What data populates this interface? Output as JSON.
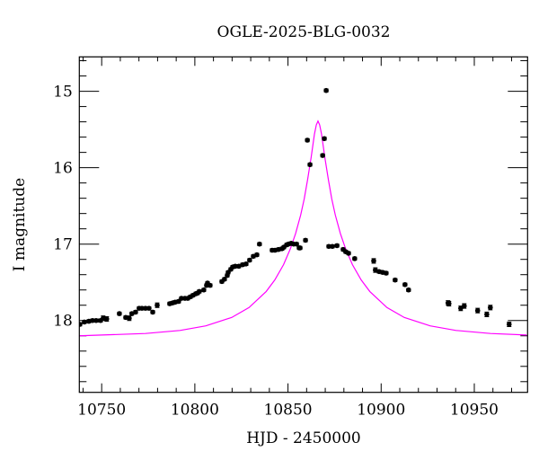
{
  "chart_data": {
    "type": "scatter",
    "title": "OGLE-2025-BLG-0032",
    "xlabel": "HJD - 2450000",
    "ylabel": "I magnitude",
    "xlim": [
      10738.0,
      10978.6
    ],
    "ylim": [
      18.94,
      14.55
    ],
    "y_inverted": true,
    "grid": false,
    "x_ticks": [
      10750,
      10800,
      10850,
      10900,
      10950
    ],
    "x_tick_labels": [
      "10750",
      "10800",
      "10850",
      "10900",
      "10950"
    ],
    "x_minor_step": 10,
    "y_ticks": [
      15,
      16,
      17,
      18
    ],
    "y_tick_labels": [
      "15",
      "16",
      "17",
      "18"
    ],
    "y_minor_step": 0.2,
    "colors": {
      "data": "#000000",
      "model": "#ff00ff",
      "axes": "#000000"
    },
    "series": [
      {
        "kind": "points_with_errorbars",
        "columns": [
          "hjd",
          "mag",
          "err"
        ],
        "points": [
          [
            10738.3,
            18.05,
            0.02
          ],
          [
            10740.7,
            18.02,
            0.02
          ],
          [
            10743.1,
            18.01,
            0.02
          ],
          [
            10745.1,
            18.0,
            0.02
          ],
          [
            10747.0,
            18.0,
            0.02
          ],
          [
            10749.4,
            18.0,
            0.02
          ],
          [
            10750.8,
            17.97,
            0.03
          ],
          [
            10752.7,
            17.98,
            0.03
          ],
          [
            10759.5,
            17.91,
            0.02
          ],
          [
            10762.9,
            17.96,
            0.02
          ],
          [
            10764.8,
            17.97,
            0.03
          ],
          [
            10766.2,
            17.91,
            0.02
          ],
          [
            10768.2,
            17.89,
            0.02
          ],
          [
            10770.1,
            17.84,
            0.02
          ],
          [
            10771.6,
            17.84,
            0.02
          ],
          [
            10773.5,
            17.84,
            0.02
          ],
          [
            10775.4,
            17.84,
            0.02
          ],
          [
            10777.4,
            17.89,
            0.02
          ],
          [
            10779.8,
            17.8,
            0.03
          ],
          [
            10786.5,
            17.78,
            0.02
          ],
          [
            10788.0,
            17.77,
            0.02
          ],
          [
            10789.4,
            17.76,
            0.02
          ],
          [
            10791.3,
            17.75,
            0.02
          ],
          [
            10792.8,
            17.71,
            0.02
          ],
          [
            10794.7,
            17.71,
            0.02
          ],
          [
            10796.2,
            17.71,
            0.02
          ],
          [
            10797.6,
            17.69,
            0.02
          ],
          [
            10799.0,
            17.67,
            0.02
          ],
          [
            10800.5,
            17.65,
            0.02
          ],
          [
            10801.5,
            17.64,
            0.02
          ],
          [
            10802.4,
            17.62,
            0.02
          ],
          [
            10804.8,
            17.6,
            0.02
          ],
          [
            10806.3,
            17.54,
            0.02
          ],
          [
            10806.8,
            17.51,
            0.02
          ],
          [
            10808.2,
            17.54,
            0.02
          ],
          [
            10814.5,
            17.49,
            0.02
          ],
          [
            10815.9,
            17.46,
            0.02
          ],
          [
            10817.4,
            17.41,
            0.02
          ],
          [
            10817.9,
            17.37,
            0.02
          ],
          [
            10819.3,
            17.33,
            0.02
          ],
          [
            10820.3,
            17.3,
            0.02
          ],
          [
            10821.7,
            17.29,
            0.02
          ],
          [
            10823.6,
            17.29,
            0.02
          ],
          [
            10825.6,
            17.27,
            0.02
          ],
          [
            10827.5,
            17.26,
            0.02
          ],
          [
            10829.4,
            17.21,
            0.02
          ],
          [
            10831.4,
            17.16,
            0.02
          ],
          [
            10833.3,
            17.14,
            0.02
          ],
          [
            10834.7,
            17.0,
            0.02
          ],
          [
            10841.5,
            17.08,
            0.02
          ],
          [
            10843.0,
            17.08,
            0.02
          ],
          [
            10844.9,
            17.07,
            0.02
          ],
          [
            10846.8,
            17.06,
            0.02
          ],
          [
            10847.8,
            17.04,
            0.02
          ],
          [
            10849.3,
            17.01,
            0.02
          ],
          [
            10850.2,
            17.0,
            0.02
          ],
          [
            10851.7,
            16.99,
            0.02
          ],
          [
            10853.1,
            17.0,
            0.02
          ],
          [
            10854.6,
            17.0,
            0.02
          ],
          [
            10856.0,
            17.05,
            0.02
          ],
          [
            10856.5,
            17.05,
            0.02
          ],
          [
            10859.4,
            16.95,
            0.02
          ],
          [
            10860.4,
            15.64,
            0.02
          ],
          [
            10861.8,
            15.96,
            0.02
          ],
          [
            10868.6,
            15.84,
            0.02
          ],
          [
            10869.5,
            15.62,
            0.02
          ],
          [
            10870.5,
            14.99,
            0.02
          ],
          [
            10871.9,
            17.03,
            0.02
          ],
          [
            10873.8,
            17.03,
            0.02
          ],
          [
            10876.3,
            17.02,
            0.02
          ],
          [
            10879.6,
            17.07,
            0.02
          ],
          [
            10881.0,
            17.1,
            0.02
          ],
          [
            10882.5,
            17.12,
            0.02
          ],
          [
            10885.8,
            17.19,
            0.02
          ],
          [
            10896.0,
            17.22,
            0.03
          ],
          [
            10896.9,
            17.34,
            0.03
          ],
          [
            10898.9,
            17.36,
            0.02
          ],
          [
            10900.8,
            17.37,
            0.02
          ],
          [
            10902.7,
            17.38,
            0.02
          ],
          [
            10907.5,
            17.47,
            0.02
          ],
          [
            10912.8,
            17.53,
            0.02
          ],
          [
            10914.7,
            17.6,
            0.02
          ],
          [
            10935.9,
            17.77,
            0.03
          ],
          [
            10936.4,
            17.78,
            0.03
          ],
          [
            10942.7,
            17.84,
            0.03
          ],
          [
            10944.6,
            17.81,
            0.03
          ],
          [
            10951.8,
            17.87,
            0.03
          ],
          [
            10956.7,
            17.92,
            0.03
          ],
          [
            10958.6,
            17.83,
            0.03
          ],
          [
            10968.7,
            18.05,
            0.03
          ]
        ]
      },
      {
        "kind": "model_curve",
        "x": [
          10738.0,
          10773.5,
          10792.0,
          10805.9,
          10819.8,
          10829.1,
          10838.3,
          10842.9,
          10847.6,
          10851.3,
          10854.1,
          10856.8,
          10858.7,
          10860.5,
          10862.4,
          10864.2,
          10865.2,
          10866.1,
          10867.0,
          10868.0,
          10869.8,
          10871.7,
          10873.5,
          10875.4,
          10878.1,
          10880.9,
          10884.6,
          10889.3,
          10893.9,
          10903.1,
          10912.4,
          10926.3,
          10940.2,
          10958.7,
          10978.1
        ],
        "y": [
          18.2,
          18.17,
          18.13,
          18.07,
          17.96,
          17.83,
          17.62,
          17.47,
          17.27,
          17.06,
          16.86,
          16.62,
          16.41,
          16.16,
          15.87,
          15.56,
          15.44,
          15.39,
          15.44,
          15.56,
          15.87,
          16.16,
          16.41,
          16.62,
          16.86,
          17.06,
          17.27,
          17.47,
          17.62,
          17.83,
          17.96,
          18.07,
          18.13,
          18.17,
          18.19
        ]
      }
    ]
  }
}
